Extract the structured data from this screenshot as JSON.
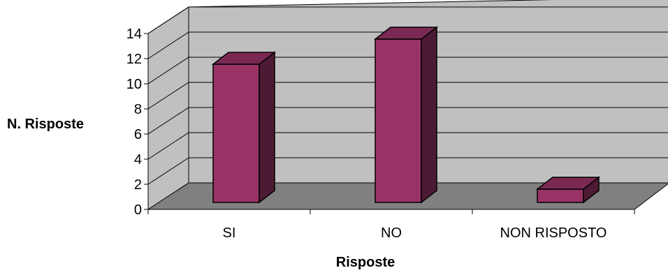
{
  "chart_data": {
    "type": "bar",
    "categories": [
      "SI",
      "NO",
      "NON RISPOSTO"
    ],
    "values": [
      11,
      13,
      1
    ],
    "xlabel": "Risposte",
    "ylabel": "N. Risposte",
    "ylim": [
      0,
      14
    ],
    "yticks": [
      0,
      2,
      4,
      6,
      8,
      10,
      12,
      14
    ],
    "three_d": true,
    "grid": true,
    "legend": "none",
    "colors": {
      "bar_front": "#993366",
      "bar_side": "#4d1a33",
      "bar_top": "#7a2952",
      "back_wall": "#c0c0c0",
      "side_wall": "#c0c0c0",
      "floor": "#808080",
      "gridline": "#000000"
    }
  }
}
